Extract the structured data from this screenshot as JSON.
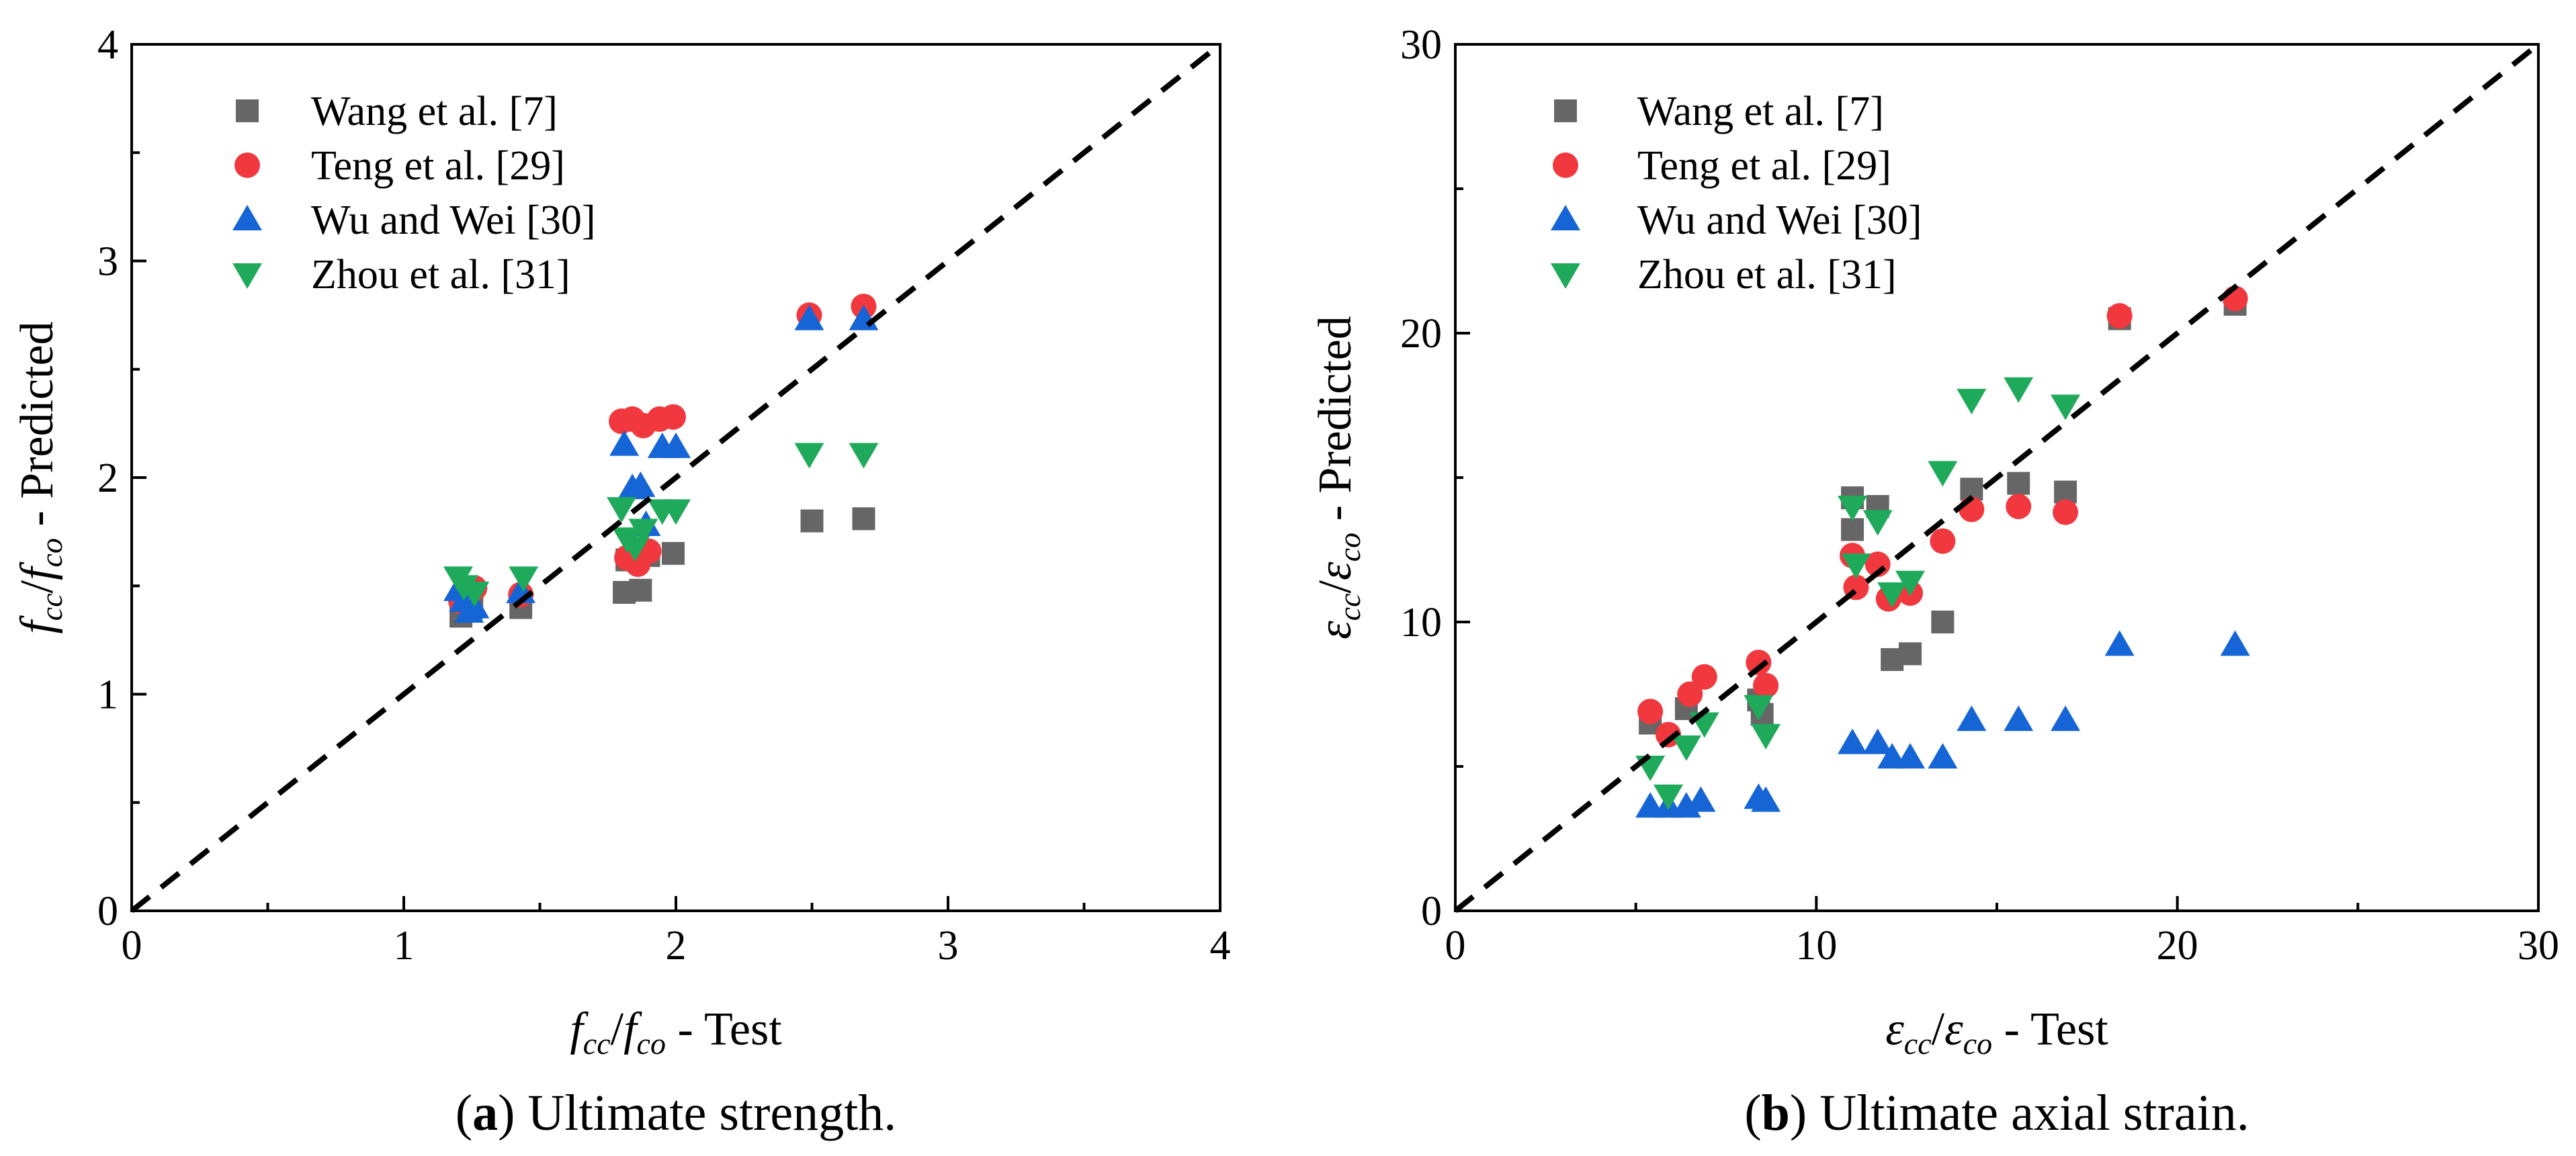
{
  "chart_data": [
    {
      "type": "scatter",
      "id": "a",
      "xlabel": "f_cc/f_co - Test",
      "ylabel": "f_cc/f_co - Predicted",
      "xlim": [
        0,
        4
      ],
      "ylim": [
        0,
        4
      ],
      "xticks": [
        "0",
        "1",
        "2",
        "3",
        "4"
      ],
      "yticks": [
        "0",
        "1",
        "2",
        "3",
        "4"
      ],
      "reference_line": {
        "from": [
          0,
          0
        ],
        "to": [
          4,
          4
        ],
        "style": "dashed"
      },
      "legend": "top-left",
      "caption": {
        "label": "a",
        "text": " Ultimate strength."
      },
      "axis_texts": {
        "x": {
          "f1": "f",
          "sub1": "cc",
          "slash": "/",
          "f2": "f",
          "sub2": "co",
          "rest": " - Test"
        },
        "y": {
          "f1": "f",
          "sub1": "cc",
          "slash": "/",
          "f2": "f",
          "sub2": "co",
          "rest": " - Predicted"
        }
      },
      "series": [
        {
          "name": "Wang et al. [7]",
          "marker": "square",
          "color": "#666666",
          "points": [
            [
              1.21,
              1.36
            ],
            [
              1.25,
              1.4
            ],
            [
              1.43,
              1.4
            ],
            [
              1.81,
              1.47
            ],
            [
              1.87,
              1.48
            ],
            [
              1.82,
              1.62
            ],
            [
              1.9,
              1.64
            ],
            [
              1.99,
              1.65
            ],
            [
              2.5,
              1.8
            ],
            [
              2.69,
              1.81
            ]
          ]
        },
        {
          "name": "Teng et al. [29]",
          "marker": "circle",
          "color": "#F0383E",
          "points": [
            [
              1.21,
              1.43
            ],
            [
              1.26,
              1.49
            ],
            [
              1.43,
              1.46
            ],
            [
              1.8,
              2.26
            ],
            [
              1.84,
              2.27
            ],
            [
              1.88,
              2.24
            ],
            [
              1.94,
              2.27
            ],
            [
              1.99,
              2.28
            ],
            [
              1.82,
              1.63
            ],
            [
              1.86,
              1.6
            ],
            [
              1.9,
              1.66
            ],
            [
              2.49,
              2.75
            ],
            [
              2.69,
              2.79
            ]
          ]
        },
        {
          "name": "Wu and Wei [30]",
          "marker": "triangle-up",
          "color": "#1565D6",
          "points": [
            [
              1.2,
              1.48
            ],
            [
              1.22,
              1.43
            ],
            [
              1.24,
              1.38
            ],
            [
              1.26,
              1.4
            ],
            [
              1.43,
              1.47
            ],
            [
              1.81,
              2.15
            ],
            [
              1.84,
              1.95
            ],
            [
              1.87,
              1.96
            ],
            [
              1.89,
              1.78
            ],
            [
              1.95,
              2.14
            ],
            [
              2.0,
              2.14
            ],
            [
              2.49,
              2.73
            ],
            [
              2.69,
              2.73
            ]
          ]
        },
        {
          "name": "Zhou et al. [31]",
          "marker": "triangle-down",
          "color": "#1FAA5B",
          "points": [
            [
              1.2,
              1.54
            ],
            [
              1.22,
              1.5
            ],
            [
              1.26,
              1.47
            ],
            [
              1.44,
              1.54
            ],
            [
              1.8,
              1.86
            ],
            [
              1.82,
              1.72
            ],
            [
              1.85,
              1.68
            ],
            [
              1.88,
              1.76
            ],
            [
              1.95,
              1.85
            ],
            [
              2.0,
              1.85
            ],
            [
              2.49,
              2.11
            ],
            [
              2.69,
              2.11
            ]
          ]
        }
      ]
    },
    {
      "type": "scatter",
      "id": "b",
      "xlabel": "ε_cc/ε_co - Test",
      "ylabel": "ε_cc/ε_co - Predicted",
      "xlim": [
        0,
        30
      ],
      "ylim": [
        0,
        30
      ],
      "xticks": [
        "0",
        "10",
        "20",
        "30"
      ],
      "yticks": [
        "0",
        "10",
        "20",
        "30"
      ],
      "reference_line": {
        "from": [
          0,
          0
        ],
        "to": [
          30,
          30
        ],
        "style": "dashed"
      },
      "legend": "top-left",
      "caption": {
        "label": "b",
        "text": " Ultimate axial strain."
      },
      "axis_texts": {
        "x": {
          "f1": "ε",
          "sub1": "cc",
          "slash": "/",
          "f2": "ε",
          "sub2": "co",
          "rest": " - Test"
        },
        "y": {
          "f1": "ε",
          "sub1": "cc",
          "slash": "/",
          "f2": "ε",
          "sub2": "co",
          "rest": " - Predicted"
        }
      },
      "series": [
        {
          "name": "Wang et al. [7]",
          "marker": "square",
          "color": "#666666",
          "points": [
            [
              5.4,
              6.5
            ],
            [
              6.4,
              7.0
            ],
            [
              8.4,
              7.3
            ],
            [
              8.5,
              6.8
            ],
            [
              11.0,
              14.3
            ],
            [
              11.0,
              13.2
            ],
            [
              11.7,
              14.0
            ],
            [
              12.1,
              8.7
            ],
            [
              12.6,
              8.9
            ],
            [
              13.5,
              10.0
            ],
            [
              14.3,
              14.6
            ],
            [
              15.6,
              14.8
            ],
            [
              16.9,
              14.5
            ],
            [
              18.4,
              20.5
            ],
            [
              21.6,
              21.0
            ]
          ]
        },
        {
          "name": "Teng et al. [29]",
          "marker": "circle",
          "color": "#F0383E",
          "points": [
            [
              5.4,
              6.9
            ],
            [
              5.9,
              6.1
            ],
            [
              6.5,
              7.5
            ],
            [
              6.9,
              8.1
            ],
            [
              8.4,
              8.6
            ],
            [
              8.6,
              7.8
            ],
            [
              11.0,
              12.3
            ],
            [
              11.1,
              11.2
            ],
            [
              11.7,
              12.0
            ],
            [
              12.0,
              10.8
            ],
            [
              12.6,
              11.0
            ],
            [
              13.5,
              12.8
            ],
            [
              14.3,
              13.9
            ],
            [
              15.6,
              14.0
            ],
            [
              16.9,
              13.8
            ],
            [
              18.4,
              20.6
            ],
            [
              21.6,
              21.2
            ]
          ]
        },
        {
          "name": "Wu and Wei [30]",
          "marker": "triangle-up",
          "color": "#1565D6",
          "points": [
            [
              5.4,
              3.6
            ],
            [
              5.9,
              3.6
            ],
            [
              6.4,
              3.6
            ],
            [
              6.8,
              3.8
            ],
            [
              8.4,
              3.9
            ],
            [
              8.6,
              3.8
            ],
            [
              11.0,
              5.8
            ],
            [
              11.7,
              5.8
            ],
            [
              12.1,
              5.3
            ],
            [
              12.6,
              5.3
            ],
            [
              13.5,
              5.3
            ],
            [
              14.3,
              6.6
            ],
            [
              15.6,
              6.6
            ],
            [
              16.9,
              6.6
            ],
            [
              18.4,
              9.2
            ],
            [
              21.6,
              9.2
            ]
          ]
        },
        {
          "name": "Zhou et al. [31]",
          "marker": "triangle-down",
          "color": "#1FAA5B",
          "points": [
            [
              5.4,
              5.0
            ],
            [
              5.9,
              4.0
            ],
            [
              6.4,
              5.7
            ],
            [
              6.9,
              6.5
            ],
            [
              8.4,
              7.1
            ],
            [
              8.6,
              6.1
            ],
            [
              11.0,
              14.0
            ],
            [
              11.1,
              12.0
            ],
            [
              11.7,
              13.5
            ],
            [
              12.1,
              11.0
            ],
            [
              12.6,
              11.4
            ],
            [
              13.5,
              15.2
            ],
            [
              14.3,
              17.7
            ],
            [
              15.6,
              18.1
            ],
            [
              16.9,
              17.5
            ]
          ]
        }
      ]
    }
  ]
}
